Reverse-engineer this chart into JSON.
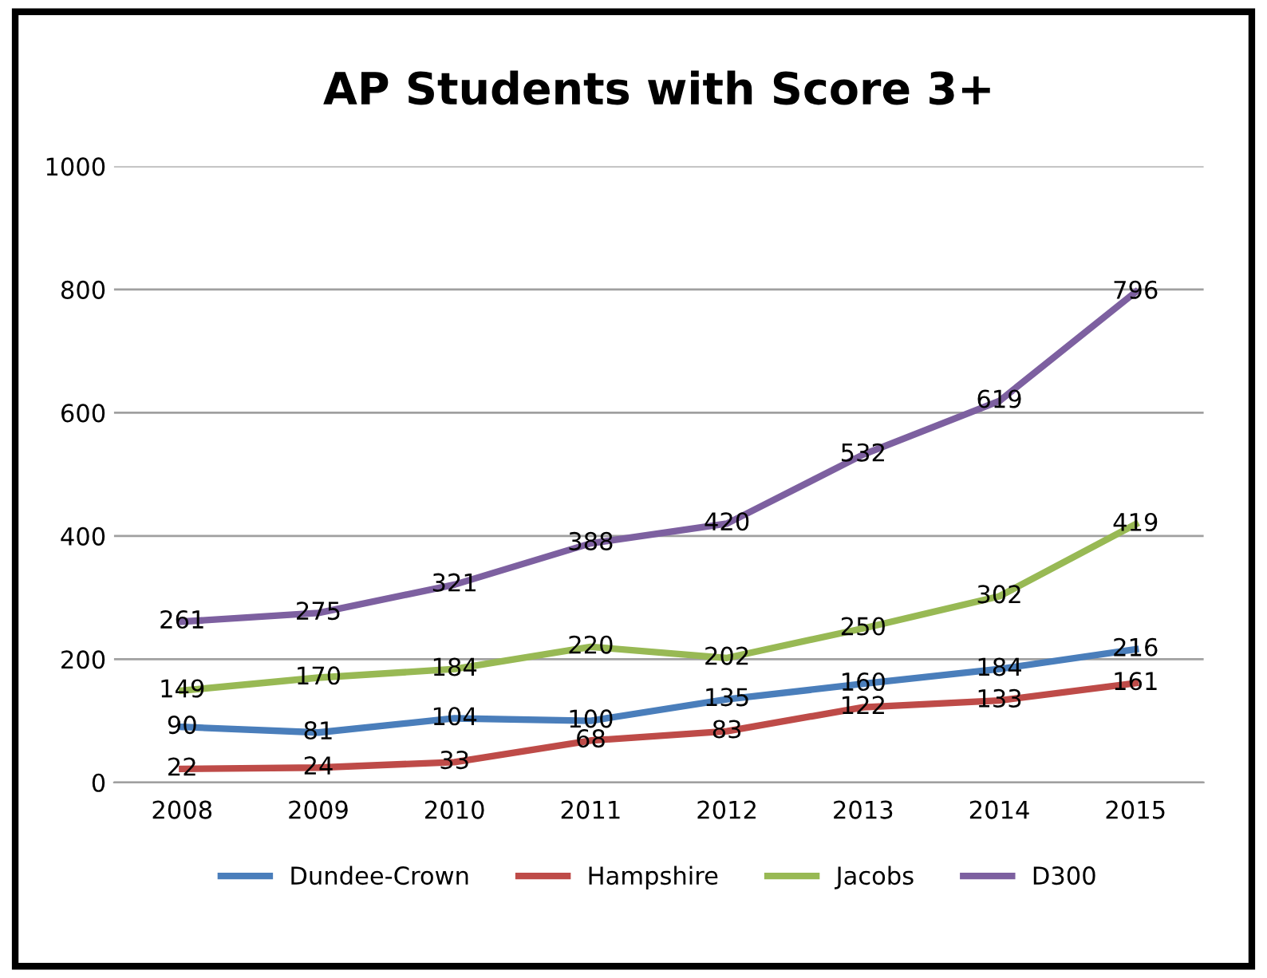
{
  "chart_data": {
    "type": "line",
    "title": "AP Students with Score 3+",
    "categories": [
      "2008",
      "2009",
      "2010",
      "2011",
      "2012",
      "2013",
      "2014",
      "2015"
    ],
    "series": [
      {
        "name": "Dundee-Crown",
        "color": "#4a7ebb",
        "values": [
          90,
          81,
          104,
          100,
          135,
          160,
          184,
          216
        ]
      },
      {
        "name": "Hampshire",
        "color": "#be4b48",
        "values": [
          22,
          24,
          33,
          68,
          83,
          122,
          133,
          161
        ]
      },
      {
        "name": "Jacobs",
        "color": "#98b954",
        "values": [
          149,
          170,
          184,
          220,
          202,
          250,
          302,
          419
        ]
      },
      {
        "name": "D300",
        "color": "#7d60a0",
        "values": [
          261,
          275,
          321,
          388,
          420,
          532,
          619,
          796
        ]
      }
    ],
    "ylim": [
      0,
      1000
    ],
    "yticks": [
      0,
      200,
      400,
      600,
      800,
      1000
    ],
    "grid": "y",
    "legend": "bottom",
    "data_labels": true,
    "marker": "none",
    "line_style": "solid"
  }
}
